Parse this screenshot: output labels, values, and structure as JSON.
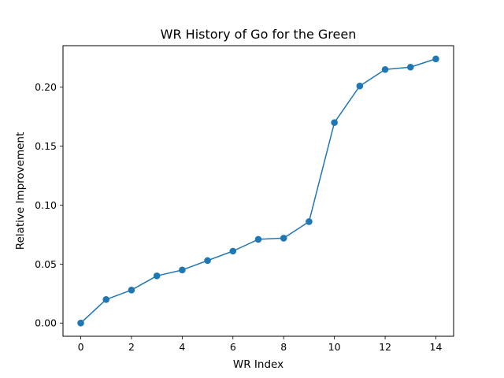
{
  "chart_data": {
    "type": "line",
    "title": "WR History of Go for the Green",
    "xlabel": "WR Index",
    "ylabel": "Relative Improvement",
    "x": [
      0,
      1,
      2,
      3,
      4,
      5,
      6,
      7,
      8,
      9,
      10,
      11,
      12,
      13,
      14
    ],
    "series": [
      {
        "values": [
          0.0,
          0.02,
          0.028,
          0.04,
          0.045,
          0.053,
          0.061,
          0.071,
          0.072,
          0.086,
          0.17,
          0.201,
          0.215,
          0.217,
          0.224
        ],
        "color": "#1f77b4",
        "marker": "circle"
      }
    ],
    "xlim": [
      -0.7,
      14.7
    ],
    "ylim": [
      -0.0112,
      0.2352
    ],
    "xticks": [
      0,
      2,
      4,
      6,
      8,
      10,
      12,
      14
    ],
    "xtick_labels": [
      "0",
      "2",
      "4",
      "6",
      "8",
      "10",
      "12",
      "14"
    ],
    "yticks": [
      0.0,
      0.05,
      0.1,
      0.15,
      0.2
    ],
    "ytick_labels": [
      "0.00",
      "0.05",
      "0.10",
      "0.15",
      "0.20"
    ],
    "grid": false,
    "legend": "none"
  }
}
